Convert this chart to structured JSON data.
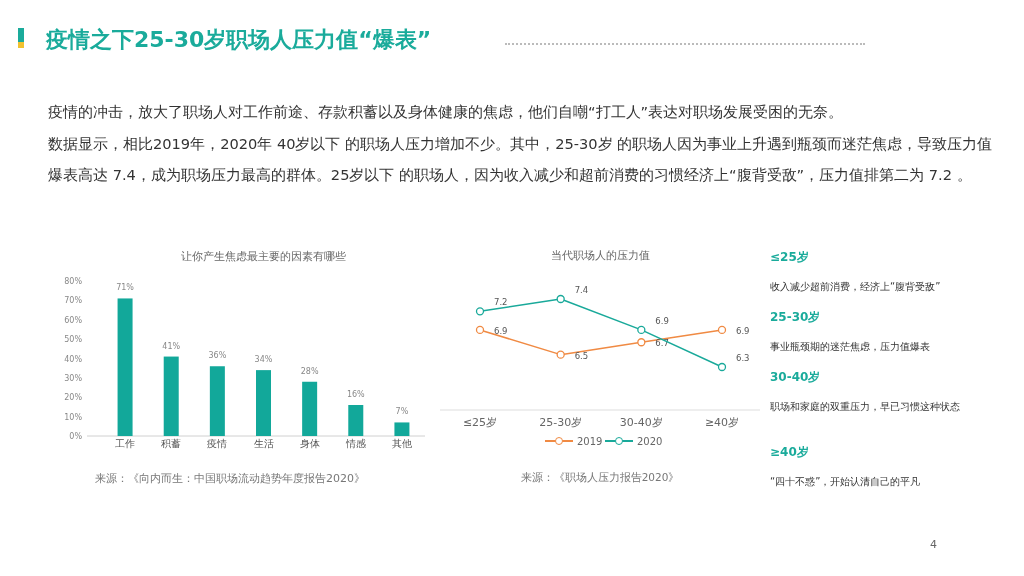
{
  "chart_data": [
    {
      "type": "other",
      "title": "疫情之下25-30岁职场人压力值“爆表”",
      "annotations": [
        "疫情的冲击，放大了职场人对工作前途、存款积蓄以及身体健康的焦虑，他们自嘲“打工人”表达对职场发展受困的无奈。",
        "数据显示，相比2019年，2020年 40岁以下 的职场人压力增加不少。其中，25-30岁 的职场人因为事业上升遇到瓶颈而迷茫焦虑，导致压力值爆表高达 7.4，成为职场压力最高的群体。25岁以下 的职场人，因为收入减少和超前消费的习惯经济上“腹背受敌”，压力值排第二为 7.2 。",
        "4"
      ]
    },
    {
      "type": "bar",
      "title": "让你产生焦虑最主要的因素有哪些",
      "categories": [
        "工作",
        "积蓄",
        "疫情",
        "生活",
        "身体",
        "情感",
        "其他"
      ],
      "values": [
        71,
        41,
        36,
        34,
        28,
        16,
        7
      ],
      "value_labels": [
        "71%",
        "41%",
        "36%",
        "34%",
        "28%",
        "16%",
        "7%"
      ],
      "color": "#12a89a",
      "ylim": [
        0,
        80
      ],
      "yticks": [
        {
          "value": 0,
          "label": "0%"
        },
        {
          "value": 10,
          "label": "10%"
        },
        {
          "value": 20,
          "label": "20%"
        },
        {
          "value": 30,
          "label": "30%"
        },
        {
          "value": 40,
          "label": "40%"
        },
        {
          "value": 50,
          "label": "50%"
        },
        {
          "value": 60,
          "label": "60%"
        },
        {
          "value": 70,
          "label": "70%"
        },
        {
          "value": 80,
          "label": "80%"
        }
      ],
      "annotations": [
        "来源：《向内而生：中国职场流动趋势年度报告2020》"
      ]
    },
    {
      "type": "line",
      "title": "当代职场人的压力值",
      "categories": [
        "≤25岁",
        "25-30岁",
        "30-40岁",
        "≥40岁"
      ],
      "series": [
        {
          "name": "2019",
          "color": "#f08a43",
          "values": [
            6.9,
            6.5,
            6.7,
            6.9
          ]
        },
        {
          "name": "2020",
          "color": "#19a99a",
          "values": [
            7.2,
            7.4,
            6.9,
            6.3
          ]
        }
      ],
      "data_labels": true,
      "marker": "circle",
      "legend": "bottom",
      "annotations": [
        "来源：《职场人压力报告2020》"
      ]
    },
    {
      "type": "other",
      "annotations": [
        "≤25岁",
        "收入减少超前消费，经济上“腹背受敌”",
        "25-30岁",
        "事业瓶颈期的迷茫焦虑，压力值爆表",
        "30-40岁",
        "职场和家庭的双重压力，早已习惯这种状态",
        "≥40岁",
        "“四十不惑”，开始认清自己的平凡"
      ]
    }
  ]
}
